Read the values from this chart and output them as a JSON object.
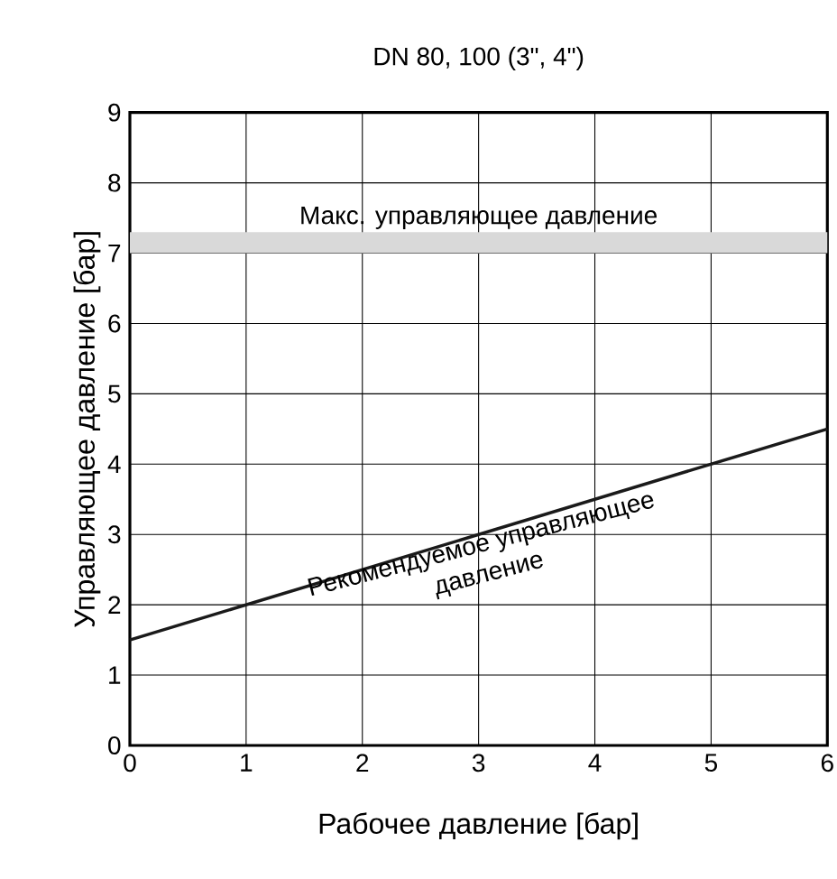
{
  "chart_data": {
    "type": "line",
    "title": "DN 80, 100 (3\", 4\")",
    "xlabel": "Рабочее давление [бар]",
    "ylabel": "Управляющее давление [бар]",
    "x": [
      0,
      6
    ],
    "series": [
      {
        "color": "#1a1a1a",
        "values": [
          1.5,
          4.5
        ]
      }
    ],
    "xlim": [
      0,
      6
    ],
    "ylim": [
      0,
      9
    ],
    "xticks": [
      0,
      1,
      2,
      3,
      4,
      5,
      6
    ],
    "yticks": [
      0,
      1,
      2,
      3,
      4,
      5,
      6,
      7,
      8,
      9
    ],
    "grid": true,
    "marker": "none",
    "line_style": "solid",
    "bands": [
      {
        "axis": "y",
        "from": 7,
        "to": 7.3,
        "label": "Макс. управляющее давление",
        "color": "#d9d9d9"
      }
    ],
    "annotations": [
      {
        "text": "Рекомендуемое управляющее давление",
        "x": 3,
        "y": 3
      }
    ]
  }
}
